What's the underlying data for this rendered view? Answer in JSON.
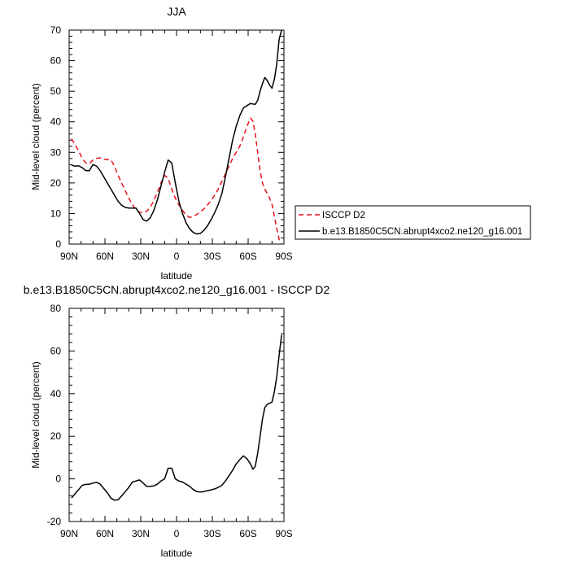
{
  "chart_data": [
    {
      "type": "line",
      "title": "JJA",
      "xlabel": "latitude",
      "ylabel": "Mid-level cloud (percent)",
      "xlim": [
        90,
        -90
      ],
      "ylim": [
        0,
        70
      ],
      "x_ticks": [
        {
          "value": 90,
          "label": "90N"
        },
        {
          "value": 60,
          "label": "60N"
        },
        {
          "value": 30,
          "label": "30N"
        },
        {
          "value": 0,
          "label": "0"
        },
        {
          "value": -30,
          "label": "30S"
        },
        {
          "value": -60,
          "label": "60S"
        },
        {
          "value": -90,
          "label": "90S"
        }
      ],
      "y_ticks": [
        0,
        10,
        20,
        30,
        40,
        50,
        60,
        70
      ],
      "legend": {
        "placement": "right"
      },
      "series": [
        {
          "name": "ISCCP D2",
          "color": "#e8111b",
          "dash": "dashed",
          "x": [
            88,
            85,
            82,
            79,
            76,
            73,
            70,
            67,
            64,
            61,
            58,
            55,
            52,
            49,
            46,
            43,
            40,
            37,
            34,
            31,
            28,
            25,
            22,
            19,
            16,
            13,
            10,
            7,
            4,
            1,
            -2,
            -5,
            -8,
            -11,
            -14,
            -17,
            -20,
            -23,
            -26,
            -29,
            -32,
            -35,
            -38,
            -41,
            -44,
            -47,
            -50,
            -53,
            -56,
            -59,
            -62,
            -64,
            -66,
            -68,
            -70,
            -72,
            -74,
            -76,
            -78,
            -80,
            -82,
            -84,
            -86,
            -88
          ],
          "y": [
            34.5,
            32.5,
            30.5,
            28,
            26.5,
            26.3,
            27.5,
            28,
            28.2,
            27.8,
            27.6,
            27.6,
            25.5,
            22.5,
            20,
            17.5,
            15,
            13,
            11.2,
            10.4,
            10.2,
            10.7,
            12,
            14.2,
            17,
            20,
            22.5,
            21.5,
            18,
            15,
            12.8,
            11,
            9.5,
            8.7,
            9,
            9.7,
            10.6,
            11.5,
            12.8,
            14.3,
            16,
            18,
            20.5,
            23,
            25.5,
            28,
            30,
            32,
            35,
            38.5,
            41.2,
            40.2,
            36,
            30,
            24,
            20,
            18,
            16.5,
            15,
            13,
            9,
            5,
            1.5,
            0.3
          ]
        },
        {
          "name": "b.e13.B1850C5CN.abrupt4xco2.ne120_g16.001",
          "color": "#000000",
          "dash": "solid",
          "x": [
            88,
            85,
            82,
            79,
            76,
            73,
            70,
            67,
            64,
            61,
            58,
            55,
            52,
            49,
            46,
            43,
            40,
            37,
            34,
            31,
            28,
            25,
            22,
            19,
            16,
            13,
            10,
            7,
            4,
            1,
            -2,
            -5,
            -8,
            -11,
            -14,
            -17,
            -20,
            -23,
            -26,
            -29,
            -32,
            -35,
            -38,
            -41,
            -44,
            -47,
            -50,
            -53,
            -56,
            -59,
            -62,
            -64,
            -66,
            -68,
            -70,
            -72,
            -74,
            -76,
            -78,
            -80,
            -82,
            -84,
            -86,
            -88
          ],
          "y": [
            25.8,
            25.5,
            25.6,
            25,
            24,
            24,
            26,
            25.5,
            24,
            22,
            20,
            18,
            16,
            14,
            12.7,
            12,
            11.8,
            11.8,
            11.8,
            10,
            8,
            7.5,
            8.6,
            11,
            14.5,
            19,
            23.5,
            27.5,
            26.5,
            20,
            14,
            10,
            7,
            5,
            3.8,
            3.3,
            3.5,
            4.5,
            6,
            8,
            10.3,
            13,
            16.5,
            22,
            28,
            34,
            38.5,
            42,
            44.5,
            45.3,
            46,
            45.8,
            45.7,
            47,
            50,
            52.5,
            54.5,
            53.5,
            52,
            51,
            54,
            59,
            67,
            70
          ]
        }
      ]
    },
    {
      "type": "line",
      "title": "b.e13.B1850C5CN.abrupt4xco2.ne120_g16.001 - ISCCP D2",
      "xlabel": "latitude",
      "ylabel": "Mid-level cloud (percent)",
      "xlim": [
        90,
        -90
      ],
      "ylim": [
        -20,
        80
      ],
      "x_ticks": [
        {
          "value": 90,
          "label": "90N"
        },
        {
          "value": 60,
          "label": "60N"
        },
        {
          "value": 30,
          "label": "30N"
        },
        {
          "value": 0,
          "label": "0"
        },
        {
          "value": -30,
          "label": "30S"
        },
        {
          "value": -60,
          "label": "60S"
        },
        {
          "value": -90,
          "label": "90S"
        }
      ],
      "y_ticks": [
        -20,
        0,
        20,
        40,
        60,
        80
      ],
      "series": [
        {
          "color": "#000000",
          "dash": "solid",
          "x": [
            88,
            85,
            82,
            79,
            76,
            73,
            70,
            67,
            64,
            61,
            58,
            55,
            52,
            49,
            46,
            43,
            40,
            37,
            34,
            31,
            28,
            25,
            22,
            19,
            16,
            13,
            10,
            7,
            4,
            1,
            -2,
            -5,
            -8,
            -11,
            -14,
            -17,
            -20,
            -23,
            -26,
            -29,
            -32,
            -35,
            -38,
            -41,
            -44,
            -47,
            -50,
            -53,
            -56,
            -59,
            -62,
            -64,
            -66,
            -68,
            -70,
            -72,
            -74,
            -76,
            -78,
            -80,
            -82,
            -84,
            -86,
            -88
          ],
          "y": [
            -9,
            -7,
            -5,
            -3,
            -2.6,
            -2.5,
            -2,
            -1.6,
            -2.5,
            -4.5,
            -6.5,
            -9,
            -10,
            -9.8,
            -8,
            -6,
            -4,
            -1.5,
            -1,
            -0.5,
            -2,
            -3.5,
            -3.5,
            -3.3,
            -2.5,
            -1,
            0,
            5,
            5,
            0,
            -1,
            -1.5,
            -2.5,
            -3.5,
            -5,
            -6,
            -6.2,
            -6,
            -5.5,
            -5.2,
            -4.7,
            -4,
            -3,
            -1,
            1.5,
            4,
            7,
            9,
            10.8,
            9.5,
            7,
            4.5,
            6,
            12,
            20,
            28,
            33.5,
            35,
            35.5,
            36,
            41,
            48,
            58,
            67.5
          ]
        }
      ]
    }
  ]
}
